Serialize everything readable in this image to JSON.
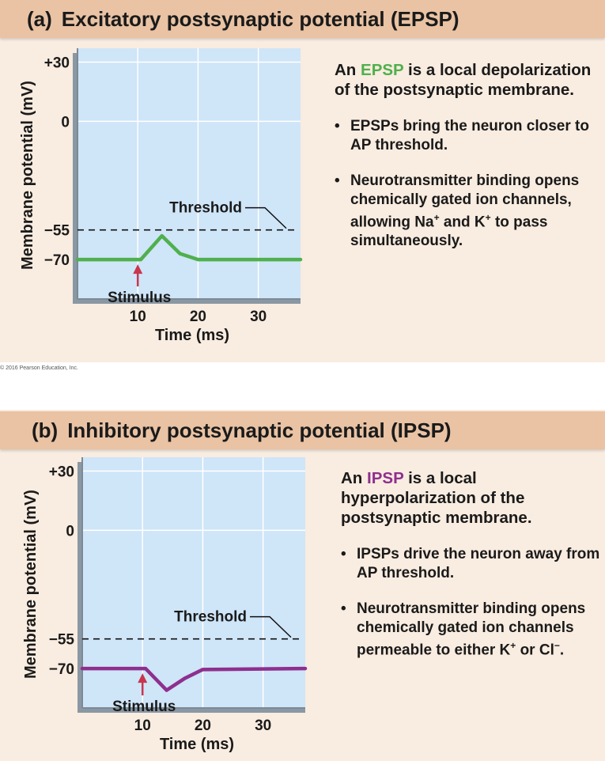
{
  "panel_a": {
    "letter": "(a)",
    "title": "Excitatory postsynaptic potential (EPSP)",
    "lead": {
      "pre": "An ",
      "highlight": "EPSP",
      "post": " is a local depolarization of the postsynaptic membrane."
    },
    "bullets": [
      {
        "parts": [
          {
            "t": "EPSPs bring the neuron closer to AP threshold."
          }
        ]
      },
      {
        "parts": [
          {
            "t": "Neurotransmitter binding opens chemically gated ion channels, allowing Na"
          },
          {
            "sup": "+"
          },
          {
            "t": " and K"
          },
          {
            "sup": "+"
          },
          {
            "t": " to pass simultaneously."
          }
        ]
      }
    ]
  },
  "panel_b": {
    "letter": "(b)",
    "title": "Inhibitory postsynaptic potential (IPSP)",
    "lead": {
      "pre": "An ",
      "highlight": "IPSP",
      "post": " is a local hyperpolarization of the postsynaptic membrane."
    },
    "bullets": [
      {
        "parts": [
          {
            "t": "IPSPs drive the neuron away from AP threshold."
          }
        ]
      },
      {
        "parts": [
          {
            "t": "Neurotransmitter binding opens chemically gated ion channels permeable to either K"
          },
          {
            "sup": "+"
          },
          {
            "t": " or Cl"
          },
          {
            "sup": "−"
          },
          {
            "t": "."
          }
        ]
      }
    ]
  },
  "copyright": "© 2016 Pearson Education, Inc.",
  "colors": {
    "banner": "#e9c3a4",
    "panel_bg": "#f9ece0",
    "plot_bg": "#cfe5f8",
    "epsp": "#4fb04c",
    "ipsp": "#8e2f8e",
    "stimulus_arrow": "#c8364e"
  },
  "chart_data": [
    {
      "type": "line",
      "ylabel": "Membrane potential (mV)",
      "xlabel": "Time (ms)",
      "xlim": [
        0,
        37
      ],
      "ylim": [
        -90,
        37
      ],
      "x_ticks": [
        10,
        20,
        30
      ],
      "y_ticks": [
        {
          "value": 30,
          "label": "+30"
        },
        {
          "value": 0,
          "label": "0"
        },
        {
          "value": -55,
          "label": "−55"
        },
        {
          "value": -70,
          "label": "−70"
        }
      ],
      "grid": true,
      "threshold": {
        "value": -55,
        "label": "Threshold"
      },
      "stimulus": {
        "x": 10,
        "label": "Stimulus"
      },
      "series": [
        {
          "color": "#4fb04c",
          "points": [
            [
              0,
              -70
            ],
            [
              10.5,
              -70
            ],
            [
              14,
              -58
            ],
            [
              17,
              -67
            ],
            [
              20,
              -70
            ],
            [
              37,
              -70
            ]
          ]
        }
      ]
    },
    {
      "type": "line",
      "ylabel": "Membrane potential (mV)",
      "xlabel": "Time (ms)",
      "xlim": [
        0,
        37
      ],
      "ylim": [
        -90,
        37
      ],
      "x_ticks": [
        10,
        20,
        30
      ],
      "y_ticks": [
        {
          "value": 30,
          "label": "+30"
        },
        {
          "value": 0,
          "label": "0"
        },
        {
          "value": -55,
          "label": "−55"
        },
        {
          "value": -70,
          "label": "−70"
        }
      ],
      "grid": true,
      "threshold": {
        "value": -55,
        "label": "Threshold"
      },
      "stimulus": {
        "x": 10,
        "label": "Stimulus"
      },
      "series": [
        {
          "color": "#8e2f8e",
          "points": [
            [
              0,
              -70
            ],
            [
              10.5,
              -70
            ],
            [
              14,
              -81
            ],
            [
              17,
              -75
            ],
            [
              20,
              -70.5
            ],
            [
              37,
              -70
            ]
          ]
        }
      ]
    }
  ]
}
